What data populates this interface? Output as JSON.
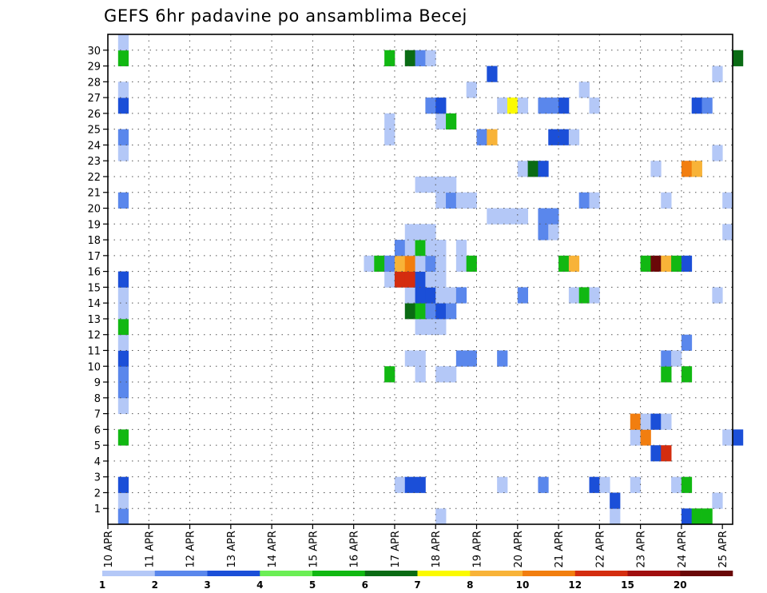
{
  "chart_data": {
    "type": "heatmap",
    "title": "GEFS 6hr padavine po ansamblima Becej",
    "xlabel": "",
    "ylabel": "",
    "x_tick_labels": [
      "10 APR",
      "11 APR",
      "12 APR",
      "13 APR",
      "14 APR",
      "15 APR",
      "16 APR",
      "17 APR",
      "18 APR",
      "19 APR",
      "20 APR",
      "21 APR",
      "22 APR",
      "23 APR",
      "24 APR",
      "25 APR"
    ],
    "y_tick_labels": [
      "1",
      "2",
      "3",
      "4",
      "5",
      "6",
      "7",
      "8",
      "9",
      "10",
      "11",
      "12",
      "13",
      "14",
      "15",
      "16",
      "17",
      "18",
      "19",
      "20",
      "21",
      "22",
      "23",
      "24",
      "25",
      "26",
      "27",
      "28",
      "29",
      "30"
    ],
    "time_steps_per_day": 4,
    "time_steps": 61,
    "members": 31,
    "ylim": [
      0,
      30
    ],
    "grid": "dotted",
    "colorbar": {
      "labels": [
        "1",
        "2",
        "3",
        "4",
        "5",
        "6",
        "7",
        "8",
        "10",
        "12",
        "15",
        "20"
      ],
      "colors": [
        "#b4c8f7",
        "#5a87ec",
        "#1b4fd8",
        "#6bee55",
        "#11b812",
        "#0a6b14",
        "#fbfa00",
        "#f8b338",
        "#f27e0f",
        "#d42d0f",
        "#a10e0e",
        "#6a0808"
      ]
    },
    "cells": [
      [
        1,
        0,
        1
      ],
      [
        1,
        0,
        2
      ],
      [
        1,
        1,
        1
      ],
      [
        1,
        2,
        3
      ],
      [
        1,
        5,
        5
      ],
      [
        1,
        7,
        1
      ],
      [
        1,
        8,
        2
      ],
      [
        1,
        9,
        2
      ],
      [
        1,
        10,
        3
      ],
      [
        1,
        11,
        1
      ],
      [
        1,
        12,
        5
      ],
      [
        1,
        13,
        1
      ],
      [
        1,
        14,
        1
      ],
      [
        1,
        15,
        3
      ],
      [
        1,
        20,
        2
      ],
      [
        1,
        23,
        1
      ],
      [
        1,
        24,
        2
      ],
      [
        1,
        26,
        3
      ],
      [
        1,
        27,
        1
      ],
      [
        1,
        29,
        5
      ],
      [
        1,
        30,
        1
      ],
      [
        25,
        16,
        1
      ],
      [
        26,
        16,
        5
      ],
      [
        27,
        9,
        5
      ],
      [
        27,
        15,
        1
      ],
      [
        27,
        16,
        2
      ],
      [
        27,
        24,
        1
      ],
      [
        27,
        25,
        1
      ],
      [
        27,
        29,
        5
      ],
      [
        28,
        15,
        10
      ],
      [
        28,
        16,
        8
      ],
      [
        28,
        17,
        2
      ],
      [
        28,
        2,
        1
      ],
      [
        29,
        2,
        3
      ],
      [
        29,
        13,
        6
      ],
      [
        29,
        14,
        1
      ],
      [
        29,
        15,
        10
      ],
      [
        29,
        16,
        9
      ],
      [
        29,
        17,
        1
      ],
      [
        29,
        18,
        1
      ],
      [
        29,
        29,
        6
      ],
      [
        29,
        10,
        1
      ],
      [
        30,
        2,
        3
      ],
      [
        30,
        9,
        1
      ],
      [
        30,
        10,
        1
      ],
      [
        30,
        12,
        1
      ],
      [
        30,
        13,
        5
      ],
      [
        30,
        14,
        3
      ],
      [
        30,
        15,
        3
      ],
      [
        30,
        16,
        1
      ],
      [
        30,
        17,
        5
      ],
      [
        30,
        18,
        1
      ],
      [
        30,
        21,
        1
      ],
      [
        30,
        29,
        2
      ],
      [
        31,
        12,
        1
      ],
      [
        31,
        13,
        2
      ],
      [
        31,
        14,
        3
      ],
      [
        31,
        15,
        1
      ],
      [
        31,
        16,
        2
      ],
      [
        31,
        17,
        1
      ],
      [
        31,
        18,
        1
      ],
      [
        31,
        21,
        1
      ],
      [
        31,
        26,
        2
      ],
      [
        31,
        29,
        1
      ],
      [
        32,
        0,
        1
      ],
      [
        32,
        9,
        1
      ],
      [
        32,
        12,
        1
      ],
      [
        32,
        13,
        3
      ],
      [
        32,
        14,
        1
      ],
      [
        32,
        15,
        1
      ],
      [
        32,
        16,
        1
      ],
      [
        32,
        17,
        1
      ],
      [
        32,
        21,
        1
      ],
      [
        32,
        25,
        1
      ],
      [
        32,
        26,
        3
      ],
      [
        32,
        20,
        1
      ],
      [
        33,
        9,
        1
      ],
      [
        33,
        13,
        2
      ],
      [
        33,
        14,
        1
      ],
      [
        33,
        20,
        2
      ],
      [
        33,
        21,
        1
      ],
      [
        33,
        25,
        5
      ],
      [
        34,
        10,
        2
      ],
      [
        34,
        14,
        2
      ],
      [
        34,
        16,
        1
      ],
      [
        34,
        17,
        1
      ],
      [
        34,
        20,
        1
      ],
      [
        35,
        10,
        2
      ],
      [
        35,
        16,
        5
      ],
      [
        35,
        20,
        1
      ],
      [
        35,
        27,
        1
      ],
      [
        36,
        24,
        2
      ],
      [
        37,
        24,
        8
      ],
      [
        37,
        19,
        1
      ],
      [
        37,
        28,
        3
      ],
      [
        38,
        2,
        1
      ],
      [
        38,
        10,
        2
      ],
      [
        38,
        19,
        1
      ],
      [
        38,
        26,
        1
      ],
      [
        39,
        19,
        1
      ],
      [
        39,
        26,
        7
      ],
      [
        40,
        14,
        2
      ],
      [
        40,
        19,
        1
      ],
      [
        40,
        22,
        1
      ],
      [
        40,
        26,
        1
      ],
      [
        41,
        22,
        6
      ],
      [
        42,
        18,
        2
      ],
      [
        42,
        19,
        2
      ],
      [
        42,
        2,
        2
      ],
      [
        42,
        22,
        3
      ],
      [
        42,
        26,
        2
      ],
      [
        43,
        18,
        1
      ],
      [
        43,
        19,
        2
      ],
      [
        43,
        24,
        3
      ],
      [
        43,
        26,
        2
      ],
      [
        44,
        16,
        5
      ],
      [
        44,
        24,
        3
      ],
      [
        44,
        26,
        3
      ],
      [
        45,
        14,
        1
      ],
      [
        45,
        16,
        8
      ],
      [
        45,
        24,
        1
      ],
      [
        46,
        14,
        5
      ],
      [
        46,
        20,
        2
      ],
      [
        46,
        27,
        1
      ],
      [
        47,
        2,
        3
      ],
      [
        47,
        14,
        1
      ],
      [
        47,
        20,
        1
      ],
      [
        47,
        26,
        1
      ],
      [
        48,
        2,
        1
      ],
      [
        49,
        0,
        1
      ],
      [
        49,
        1,
        3
      ],
      [
        51,
        2,
        1
      ],
      [
        51,
        5,
        1
      ],
      [
        51,
        6,
        9
      ],
      [
        52,
        5,
        9
      ],
      [
        52,
        6,
        1
      ],
      [
        52,
        16,
        5
      ],
      [
        53,
        4,
        3
      ],
      [
        53,
        6,
        3
      ],
      [
        53,
        16,
        12
      ],
      [
        53,
        22,
        1
      ],
      [
        54,
        4,
        10
      ],
      [
        54,
        6,
        1
      ],
      [
        54,
        9,
        5
      ],
      [
        54,
        10,
        2
      ],
      [
        54,
        16,
        8
      ],
      [
        54,
        20,
        1
      ],
      [
        55,
        10,
        1
      ],
      [
        55,
        16,
        5
      ],
      [
        55,
        2,
        1
      ],
      [
        56,
        0,
        3
      ],
      [
        56,
        9,
        5
      ],
      [
        56,
        11,
        2
      ],
      [
        56,
        16,
        3
      ],
      [
        56,
        2,
        5
      ],
      [
        56,
        22,
        9
      ],
      [
        57,
        0,
        5
      ],
      [
        57,
        22,
        8
      ],
      [
        57,
        26,
        3
      ],
      [
        58,
        0,
        5
      ],
      [
        58,
        26,
        2
      ],
      [
        59,
        1,
        1
      ],
      [
        59,
        14,
        1
      ],
      [
        59,
        23,
        1
      ],
      [
        59,
        28,
        1
      ],
      [
        60,
        18,
        1
      ],
      [
        60,
        20,
        1
      ],
      [
        60,
        5,
        1
      ],
      [
        61,
        5,
        3
      ],
      [
        61,
        29,
        6
      ]
    ]
  }
}
